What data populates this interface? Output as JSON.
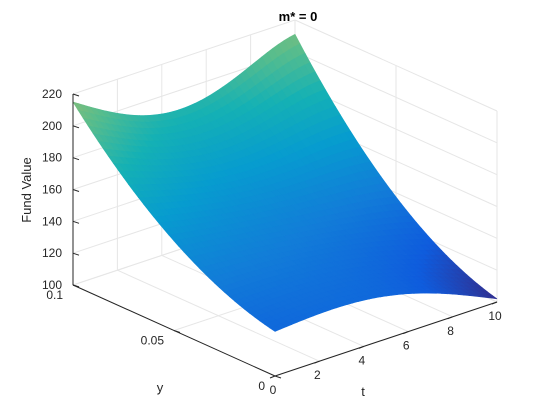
{
  "chart_data": {
    "type": "surface",
    "title": "m* = 0",
    "xlabel": "t",
    "ylabel": "y",
    "zlabel": "Fund Value",
    "xlim": [
      0,
      10
    ],
    "ylim": [
      0,
      0.1
    ],
    "zlim": [
      100,
      220
    ],
    "xticks": [
      "0",
      "2",
      "4",
      "6",
      "8",
      "10"
    ],
    "yticks": [
      "0",
      "0.05",
      "0.1"
    ],
    "zticks": [
      "100",
      "120",
      "140",
      "160",
      "180",
      "200",
      "220"
    ],
    "grid": true,
    "colormap": "parula",
    "corner_values": {
      "t0_y0": 128,
      "t0_y01": 215,
      "t10_y0": 102,
      "t10_y01": 221
    },
    "colors": {
      "axis": "#262626",
      "grid": "#e6e6e6",
      "edge": "#4a4a4a"
    }
  }
}
